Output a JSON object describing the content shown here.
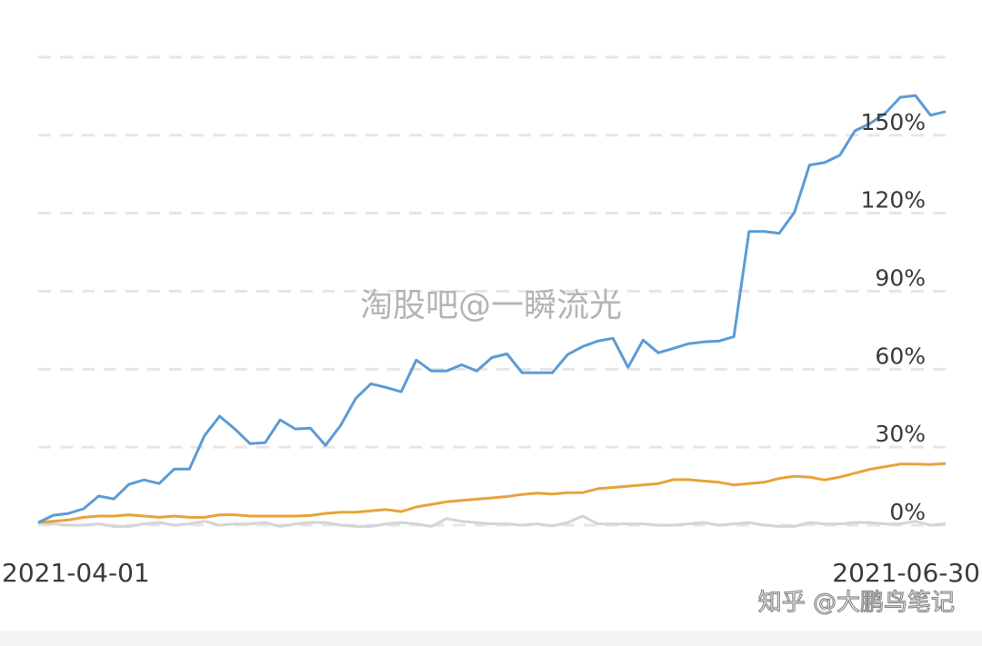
{
  "chart_data": {
    "type": "line",
    "watermark": "淘股吧@一瞬流光",
    "source_mark": "知乎 @大鹏鸟笔记",
    "categories": [
      "2021-04-01",
      null,
      null,
      null,
      null,
      null,
      null,
      null,
      null,
      null,
      null,
      null,
      null,
      null,
      null,
      null,
      null,
      null,
      null,
      null,
      null,
      null,
      null,
      null,
      null,
      null,
      null,
      null,
      null,
      null,
      null,
      null,
      null,
      null,
      null,
      null,
      null,
      null,
      null,
      null,
      null,
      null,
      null,
      null,
      null,
      null,
      null,
      null,
      null,
      null,
      null,
      null,
      null,
      null,
      null,
      null,
      null,
      null,
      null,
      null,
      "2021-06-30"
    ],
    "series": [
      {
        "color": "#5b9bd5",
        "values": [
          1.0,
          3.8,
          4.5,
          6.3,
          11.2,
          10.1,
          15.7,
          17.4,
          16.0,
          21.6,
          21.6,
          34.5,
          41.9,
          37.0,
          31.4,
          31.7,
          40.5,
          37.0,
          37.3,
          30.7,
          38.4,
          48.8,
          54.4,
          53.0,
          51.3,
          63.5,
          59.3,
          59.3,
          61.7,
          59.3,
          64.5,
          65.9,
          58.6,
          58.6,
          58.6,
          65.6,
          68.7,
          70.8,
          71.9,
          60.7,
          71.2,
          66.3,
          68.0,
          69.8,
          70.5,
          70.8,
          72.5,
          113.0,
          113.0,
          112.3,
          120.3,
          138.5,
          139.5,
          142.3,
          151.7,
          154.5,
          158.4,
          164.6,
          165.3,
          157.7,
          159.1
        ]
      },
      {
        "color": "#e8a33a",
        "values": [
          1,
          1.5,
          2,
          3,
          3.5,
          3.5,
          4,
          3.5,
          3,
          3.5,
          3,
          3,
          4,
          4,
          3.5,
          3.5,
          3.5,
          3.5,
          3.7,
          4.5,
          5,
          5,
          5.5,
          6,
          5.2,
          7,
          8,
          9,
          9.5,
          10,
          10.5,
          11,
          11.8,
          12.3,
          12,
          12.5,
          12.5,
          14,
          14.5,
          15,
          15.5,
          16,
          17.5,
          17.5,
          17,
          16.5,
          15.5,
          16,
          16.5,
          18,
          18.8,
          18.5,
          17.4,
          18.5,
          20,
          21.5,
          22.5,
          23.5,
          23.5,
          23.3,
          23.7
        ]
      },
      {
        "color": "#d4d4d4",
        "values": [
          1,
          0.5,
          0,
          0,
          0.5,
          -0.5,
          -0.5,
          0.5,
          1,
          0,
          0.5,
          1.5,
          0,
          0.5,
          0.5,
          1,
          -0.5,
          0.5,
          1,
          1,
          0,
          -0.5,
          -0.5,
          0.5,
          1,
          0.5,
          -0.5,
          2.5,
          1.5,
          1,
          0.5,
          0.5,
          0,
          0.5,
          -0.3,
          1,
          3.5,
          0.5,
          0.5,
          0.5,
          0.5,
          0,
          0,
          0.5,
          1,
          0,
          0.5,
          1,
          0,
          -0.5,
          -0.5,
          1,
          0.5,
          0.5,
          1,
          1,
          0.5,
          0.5,
          1.5,
          0,
          0.5
        ]
      }
    ],
    "ylim": [
      0,
      180
    ],
    "yticks": [
      {
        "value": 0,
        "label": "0%"
      },
      {
        "value": 30,
        "label": "30%"
      },
      {
        "value": 60,
        "label": "60%"
      },
      {
        "value": 90,
        "label": "90%"
      },
      {
        "value": 120,
        "label": "120%"
      },
      {
        "value": 150,
        "label": "150%"
      }
    ],
    "grid": true
  }
}
